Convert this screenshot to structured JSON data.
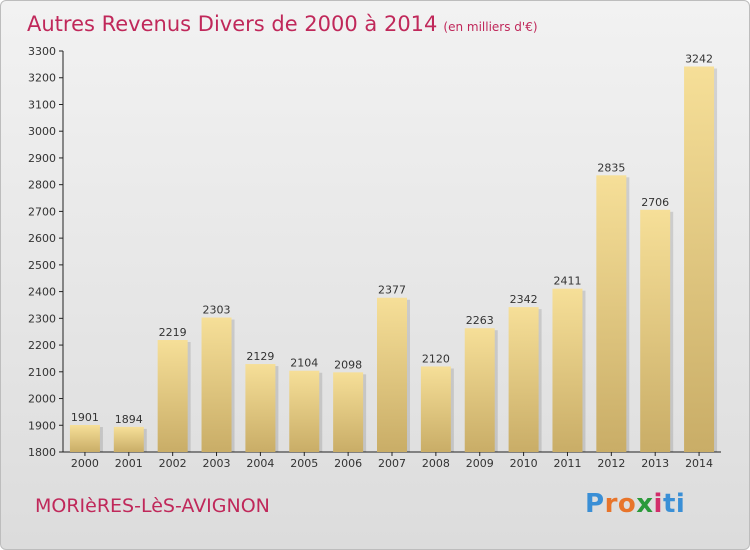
{
  "chart_data": {
    "type": "bar",
    "title": "Autres Revenus Divers de 2000 à 2014",
    "subtitle": "(en milliers d'€)",
    "categories": [
      "2000",
      "2001",
      "2002",
      "2003",
      "2004",
      "2005",
      "2006",
      "2007",
      "2008",
      "2009",
      "2010",
      "2011",
      "2012",
      "2013",
      "2014"
    ],
    "values": [
      1901,
      1894,
      2219,
      2303,
      2129,
      2104,
      2098,
      2377,
      2120,
      2263,
      2342,
      2411,
      2835,
      2706,
      3242
    ],
    "ylim": [
      1800,
      3300
    ],
    "yticks": [
      1800,
      1900,
      2000,
      2100,
      2200,
      2300,
      2400,
      2500,
      2600,
      2700,
      2800,
      2900,
      3000,
      3100,
      3200,
      3300
    ],
    "xlabel": "",
    "ylabel": "",
    "grid": false,
    "legend": "none"
  },
  "commune": "MORIèRES-LèS-AVIGNON",
  "logo": {
    "letters": [
      "P",
      "r",
      "o",
      "x",
      "i",
      "t",
      "i"
    ],
    "colors": [
      "#3a8fd6",
      "#e8742a",
      "#e8742a",
      "#2a9a3a",
      "#d22d6a",
      "#3a8fd6",
      "#3a8fd6"
    ]
  },
  "colors": {
    "title": "#c0285a",
    "bar_light": "#f6df98",
    "bar_dark": "#c9ad67"
  }
}
